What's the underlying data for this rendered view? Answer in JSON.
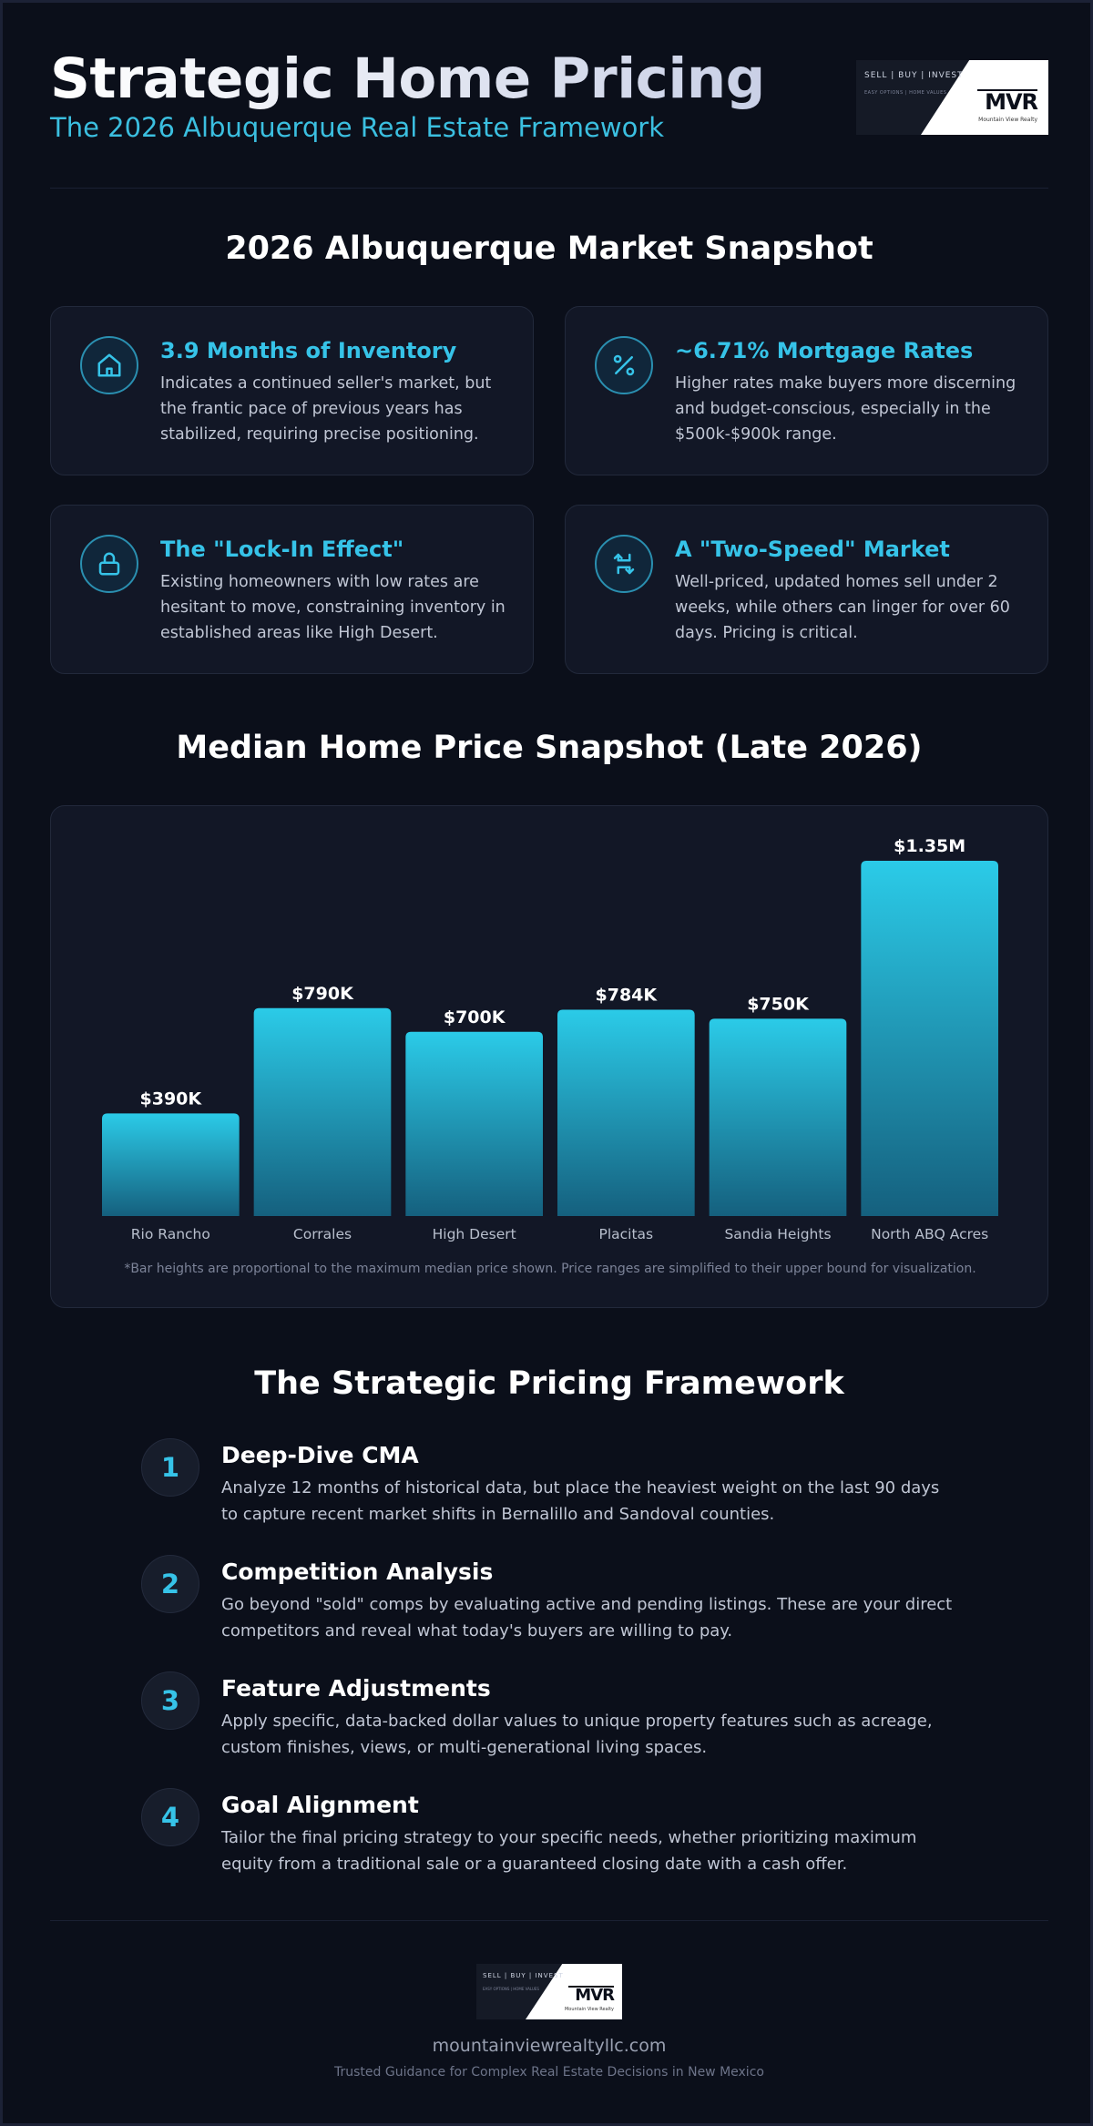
{
  "header": {
    "title": "Strategic Home Pricing",
    "subtitle": "The 2026 Albuquerque Real Estate Framework"
  },
  "logo": {
    "tagline": "SELL | BUY | INVEST",
    "subline": "EASY OPTIONS | HOME VALUES",
    "mark": "MVR",
    "mark_sub": "Mountain View Realty"
  },
  "snapshot": {
    "title": "2026 Albuquerque Market Snapshot",
    "cards": [
      {
        "icon": "home-icon",
        "title": "3.9 Months of Inventory",
        "text": "Indicates a continued seller's market, but the frantic pace of previous years has stabilized, requiring precise positioning."
      },
      {
        "icon": "percent-icon",
        "title": "~6.71% Mortgage Rates",
        "text": "Higher rates make buyers more discerning and budget-conscious, especially in the $500k-$900k range."
      },
      {
        "icon": "lock-icon",
        "title": "The \"Lock-In Effect\"",
        "text": "Existing homeowners with low rates are hesitant to move, constraining inventory in established areas like High Desert."
      },
      {
        "icon": "split-arrows-icon",
        "title": "A \"Two-Speed\" Market",
        "text": "Well-priced, updated homes sell under 2 weeks, while others can linger for over 60 days. Pricing is critical."
      }
    ]
  },
  "median": {
    "title": "Median Home Price Snapshot (Late 2026)",
    "note": "*Bar heights are proportional to the maximum median price shown. Price ranges are simplified to their upper bound for visualization."
  },
  "chart_data": {
    "type": "bar",
    "title": "Median Home Price Snapshot (Late 2026)",
    "categories": [
      "Rio Rancho",
      "Corrales",
      "High Desert",
      "Placitas",
      "Sandia Heights",
      "North ABQ Acres"
    ],
    "values": [
      390000,
      790000,
      700000,
      784000,
      750000,
      1350000
    ],
    "labels": [
      "$390K",
      "$790K",
      "$700K",
      "$784K",
      "$750K",
      "$1.35M"
    ],
    "ylim": [
      0,
      1350000
    ],
    "grid": false,
    "colors": {
      "top": "#2bcbe8",
      "bottom": "#15607e"
    }
  },
  "framework": {
    "title": "The Strategic Pricing Framework",
    "steps": [
      {
        "num": "1",
        "title": "Deep-Dive CMA",
        "text": "Analyze 12 months of historical data, but place the heaviest weight on the last 90 days to capture recent market shifts in Bernalillo and Sandoval counties."
      },
      {
        "num": "2",
        "title": "Competition Analysis",
        "text": "Go beyond \"sold\" comps by evaluating active and pending listings. These are your direct competitors and reveal what today's buyers are willing to pay."
      },
      {
        "num": "3",
        "title": "Feature Adjustments",
        "text": "Apply specific, data-backed dollar values to unique property features such as acreage, custom finishes, views, or multi-generational living spaces."
      },
      {
        "num": "4",
        "title": "Goal Alignment",
        "text": "Tailor the final pricing strategy to your specific needs, whether prioritizing maximum equity from a traditional sale or a guaranteed closing date with a cash offer."
      }
    ]
  },
  "footer": {
    "url": "mountainviewrealtyllc.com",
    "tagline": "Trusted Guidance for Complex Real Estate Decisions in New Mexico"
  },
  "colors": {
    "accent": "#36c3e8",
    "background": "#0b0f1a",
    "card": "#121726"
  }
}
